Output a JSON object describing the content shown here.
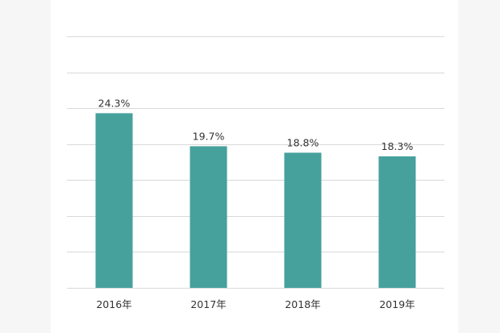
{
  "chart_data": {
    "type": "bar",
    "title": "",
    "xlabel": "",
    "ylabel": "",
    "categories": [
      "2016年",
      "2017年",
      "2018年",
      "2019年"
    ],
    "values": [
      24.3,
      19.7,
      18.8,
      18.3
    ],
    "value_labels": [
      "24.3%",
      "19.7%",
      "18.8%",
      "18.3%"
    ],
    "ylim": [
      0,
      35
    ],
    "gridline_step": 5,
    "grid": true,
    "legend": "none",
    "bar_color": "#46a19c",
    "gridline_color": "#d9d9d9"
  }
}
